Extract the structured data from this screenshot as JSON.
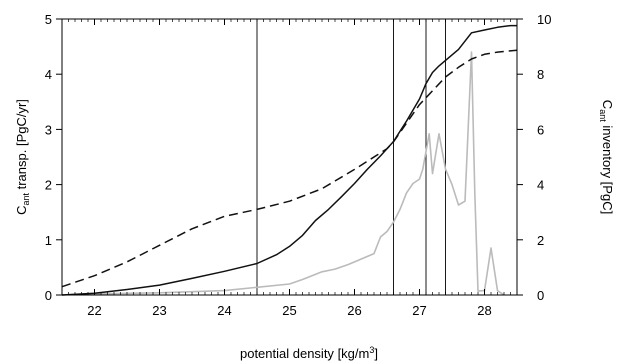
{
  "chart_data": {
    "type": "line",
    "xlabel": "potential density",
    "xunit_prefix": "[kg/m",
    "xunit_exp": "3",
    "xunit_suffix": "]",
    "ylabel_left_main": "C",
    "ylabel_left_sub": "ant",
    "ylabel_left_rest": " transp. [PgC/yr]",
    "ylabel_right_main": "C",
    "ylabel_right_sub": "ant",
    "ylabel_right_rest": " inventory [PgC]",
    "xlim": [
      21.5,
      28.5
    ],
    "ylim_left": [
      0,
      5
    ],
    "ylim_right": [
      0,
      10
    ],
    "xticks": [
      "22",
      "23",
      "24",
      "25",
      "26",
      "27",
      "28"
    ],
    "yticks_left": [
      "0",
      "1",
      "2",
      "3",
      "4",
      "5"
    ],
    "yticks_right": [
      "0",
      "2",
      "4",
      "6",
      "8",
      "10"
    ],
    "vertical_lines_x": [
      24.5,
      26.6,
      27.1,
      27.4
    ],
    "series": [
      {
        "style": "solid",
        "color": "#111111",
        "axis": "left",
        "x": [
          21.5,
          22.0,
          22.5,
          23.0,
          23.5,
          24.0,
          24.5,
          24.8,
          25.0,
          25.2,
          25.4,
          25.6,
          25.8,
          26.0,
          26.2,
          26.4,
          26.6,
          26.8,
          27.0,
          27.1,
          27.2,
          27.3,
          27.4,
          27.6,
          27.8,
          28.0,
          28.2,
          28.4,
          28.5
        ],
        "values": [
          0.0,
          0.03,
          0.1,
          0.18,
          0.3,
          0.43,
          0.57,
          0.73,
          0.88,
          1.08,
          1.35,
          1.55,
          1.78,
          2.02,
          2.28,
          2.52,
          2.78,
          3.15,
          3.55,
          3.83,
          4.03,
          4.15,
          4.25,
          4.45,
          4.75,
          4.8,
          4.85,
          4.88,
          4.88
        ]
      },
      {
        "style": "dashed",
        "color": "#111111",
        "axis": "right",
        "x": [
          21.5,
          22.0,
          22.5,
          23.0,
          23.5,
          24.0,
          24.5,
          25.0,
          25.5,
          26.0,
          26.5,
          26.6,
          27.0,
          27.4,
          27.6,
          27.8,
          28.0,
          28.2,
          28.5
        ],
        "values": [
          0.3,
          0.7,
          1.2,
          1.8,
          2.4,
          2.85,
          3.1,
          3.4,
          3.85,
          4.55,
          5.3,
          5.55,
          6.9,
          7.9,
          8.25,
          8.55,
          8.72,
          8.8,
          8.87
        ]
      },
      {
        "style": "solid",
        "color": "#bbbbbb",
        "axis": "left",
        "x": [
          21.5,
          22.0,
          23.0,
          24.0,
          24.5,
          25.0,
          25.2,
          25.5,
          25.7,
          25.9,
          26.1,
          26.3,
          26.4,
          26.5,
          26.6,
          26.7,
          26.8,
          26.9,
          27.0,
          27.05,
          27.15,
          27.2,
          27.3,
          27.4,
          27.5,
          27.6,
          27.7,
          27.8,
          27.85,
          27.9,
          28.0,
          28.1,
          28.2,
          28.3
        ],
        "values": [
          0.0,
          0.02,
          0.04,
          0.08,
          0.14,
          0.2,
          0.28,
          0.42,
          0.47,
          0.55,
          0.65,
          0.75,
          1.05,
          1.15,
          1.32,
          1.55,
          1.85,
          2.02,
          2.1,
          2.28,
          2.92,
          2.2,
          2.92,
          2.28,
          2.0,
          1.63,
          1.7,
          4.4,
          1.85,
          0.07,
          0.08,
          0.85,
          0.08,
          0.0
        ]
      }
    ]
  }
}
